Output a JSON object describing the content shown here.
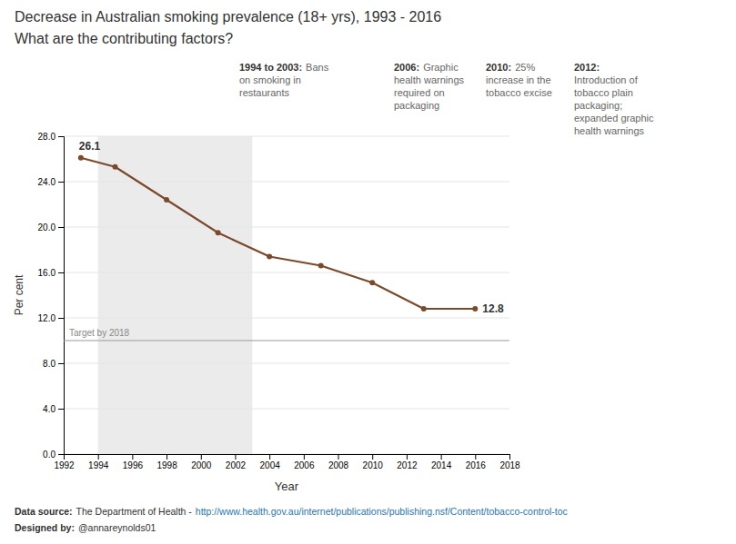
{
  "chart_data": {
    "type": "line",
    "title": "Decrease in Australian smoking prevalence (18+ yrs), 1993 - 2016",
    "subtitle": "What are the contributing factors?",
    "x_label": "Year",
    "y_label": "Per cent",
    "x": [
      1993,
      1995,
      1998,
      2001,
      2004,
      2007,
      2010,
      2013,
      2016
    ],
    "values": [
      26.1,
      25.3,
      22.4,
      19.5,
      17.4,
      16.6,
      15.1,
      12.8,
      12.8
    ],
    "value_labels": [
      "26.1",
      null,
      null,
      null,
      null,
      null,
      null,
      null,
      "12.8"
    ],
    "color": "#7B4A2D",
    "xlim": [
      1992,
      2018
    ],
    "ylim": [
      0.0,
      28.0
    ],
    "xticks": [
      1992,
      1994,
      1996,
      1998,
      2000,
      2002,
      2004,
      2006,
      2008,
      2010,
      2012,
      2014,
      2016,
      2018
    ],
    "yticks": [
      {
        "value": 0.0,
        "label": "0.0"
      },
      {
        "value": 4.0,
        "label": "4.0"
      },
      {
        "value": 8.0,
        "label": "8.0"
      },
      {
        "value": 12.0,
        "label": "12.0"
      },
      {
        "value": 16.0,
        "label": "16.0"
      },
      {
        "value": 20.0,
        "label": "20.0"
      },
      {
        "value": 24.0,
        "label": "24.0"
      },
      {
        "value": 28.0,
        "label": "28.0"
      }
    ],
    "grid": true,
    "shaded_x": [
      1994,
      2003
    ],
    "target": {
      "value": 10.0,
      "label": "Target by 2018"
    },
    "annotations": [
      {
        "heading": "1994 to 2003:",
        "heading_text": "Bans",
        "lines": [
          "on smoking in",
          "restaurants"
        ]
      },
      {
        "heading": "2006:",
        "heading_text": "Graphic",
        "lines": [
          "health warnings",
          "required on",
          "packaging"
        ]
      },
      {
        "heading": "2010:",
        "heading_text": "25%",
        "lines": [
          "increase in the",
          "tobacco excise"
        ]
      },
      {
        "heading": "2012:",
        "lines": [
          "Introduction of",
          "tobacco plain",
          "packaging;",
          "expanded graphic",
          "health warnings"
        ]
      }
    ],
    "footer": [
      {
        "heading": "Data source:",
        "text": "The Department of Health -",
        "link": "http://www.health.gov.au/internet/publications/publishing.nsf/Content/tobacco-control-toc"
      },
      {
        "heading": "Designed by:",
        "text": "@annareynolds01"
      }
    ]
  }
}
